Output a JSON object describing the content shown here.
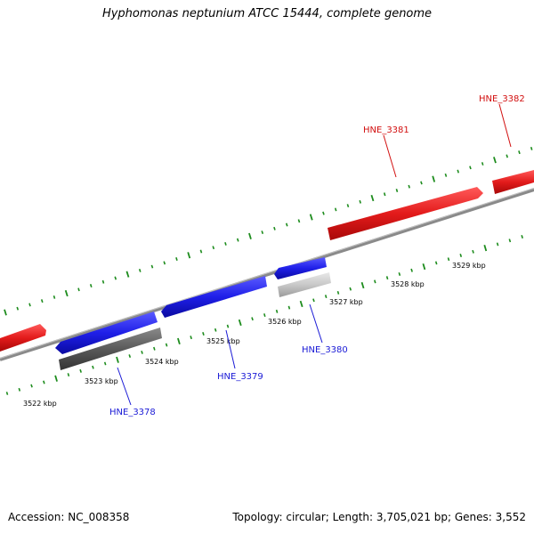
{
  "title": "Hyphomonas neptunium ATCC 15444, complete genome",
  "footer": {
    "accession": "Accession: NC_008358",
    "summary": "Topology: circular; Length: 3,705,021 bp; Genes: 3,552"
  },
  "scale": {
    "labels": [
      "3522 kbp",
      "3523 kbp",
      "3524 kbp",
      "3525 kbp",
      "3526 kbp",
      "3527 kbp",
      "3528 kbp",
      "3529 kbp"
    ]
  },
  "genes": [
    {
      "id": "HNE_3378",
      "strand": "reverse",
      "color": "#1b1bd6"
    },
    {
      "id": "HNE_3379",
      "strand": "reverse",
      "color": "#1b1bd6"
    },
    {
      "id": "HNE_3380",
      "strand": "reverse",
      "color": "#1b1bd6"
    },
    {
      "id": "HNE_3381",
      "strand": "forward",
      "color": "#d21010"
    },
    {
      "id": "HNE_3382",
      "strand": "forward",
      "color": "#d21010"
    }
  ],
  "colors": {
    "forward_gene": "#e31b1b",
    "reverse_gene": "#1f1fe8",
    "backbone": "#8a8a8a",
    "tick": "#1d8c1d",
    "feature_dark": "#5a5a5a",
    "feature_light": "#c8c8c8"
  }
}
